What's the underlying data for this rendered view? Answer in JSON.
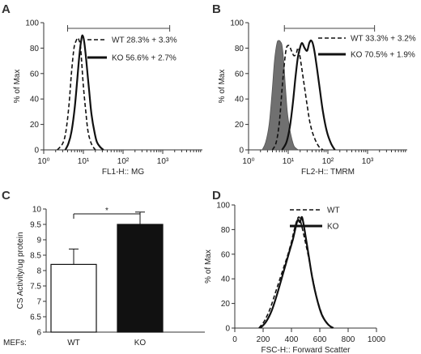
{
  "chart_data": [
    {
      "panel": "A",
      "type": "line",
      "xlabel": "FL1-H:: MG",
      "ylabel": "% of Max",
      "x_scale": "log",
      "xlim": [
        1,
        10000
      ],
      "ylim": [
        0,
        100
      ],
      "x_ticks": [
        "10⁰",
        "10¹",
        "10²",
        "10³"
      ],
      "y_ticks": [
        "0",
        "20",
        "40",
        "60",
        "80",
        "100"
      ],
      "gate_range": [
        4,
        1500
      ],
      "series": [
        {
          "name": "WT 28.3% + 3.3%",
          "style": "dashed",
          "x": [
            2.2,
            3.0,
            3.6,
            4.3,
            5.0,
            5.8,
            6.6,
            7.2,
            7.8,
            8.4,
            9.0,
            10.0,
            11.5,
            13.0,
            15.0,
            17.0,
            20.0
          ],
          "y": [
            0,
            5,
            14,
            34,
            60,
            80,
            86,
            88,
            86,
            82,
            70,
            50,
            30,
            15,
            7,
            3,
            0
          ]
        },
        {
          "name": "KO 56.6% + 2.7%",
          "style": "solid",
          "x": [
            3.5,
            4.2,
            5.0,
            6.0,
            7.0,
            8.0,
            8.8,
            9.5,
            10.5,
            12.0,
            14.0,
            16.0,
            19.0,
            22.0,
            27.0,
            32.0
          ],
          "y": [
            0,
            5,
            14,
            32,
            55,
            76,
            86,
            90,
            85,
            68,
            46,
            28,
            14,
            6,
            2,
            0
          ]
        }
      ]
    },
    {
      "panel": "B",
      "type": "line",
      "xlabel": "FL2-H:: TMRM",
      "ylabel": "% of Max",
      "x_scale": "log",
      "xlim": [
        1,
        10000
      ],
      "ylim": [
        0,
        100
      ],
      "x_ticks": [
        "10⁰",
        "10¹",
        "10²",
        "10³"
      ],
      "y_ticks": [
        "0",
        "20",
        "40",
        "60",
        "80",
        "100"
      ],
      "gate_range": [
        8,
        1500
      ],
      "series": [
        {
          "name": "",
          "style": "filled",
          "x": [
            2.2,
            2.7,
            3.3,
            3.9,
            4.5,
            5.2,
            5.8,
            6.4,
            7.0,
            7.7,
            8.5,
            9.5,
            11.0,
            12.5,
            14.0,
            16.0,
            18.0
          ],
          "y": [
            0,
            6,
            20,
            45,
            70,
            84,
            86,
            85,
            82,
            70,
            50,
            30,
            16,
            8,
            3,
            1,
            0
          ]
        },
        {
          "name": "WT 33.3% + 3.2%",
          "style": "dashed",
          "x": [
            4.0,
            5.0,
            6.0,
            7.0,
            8.0,
            9.0,
            10.5,
            12.0,
            14.0,
            16.0,
            18.0,
            21.0,
            25.0,
            30.0,
            36.0,
            45.0,
            58.0,
            75.0
          ],
          "y": [
            0,
            6,
            22,
            48,
            68,
            80,
            82,
            78,
            74,
            76,
            80,
            68,
            52,
            35,
            20,
            10,
            3,
            0
          ]
        },
        {
          "name": "KO 70.5% + 1.9%",
          "style": "solid",
          "x": [
            7.0,
            9.0,
            11.0,
            13.0,
            15.0,
            17.0,
            19.0,
            22.0,
            26.0,
            30.0,
            34.0,
            38.0,
            43.0,
            50.0,
            60.0,
            75.0,
            95.0,
            120.0,
            150.0
          ],
          "y": [
            0,
            6,
            18,
            36,
            55,
            70,
            78,
            84,
            80,
            78,
            84,
            86,
            82,
            70,
            52,
            30,
            14,
            5,
            0
          ]
        }
      ]
    },
    {
      "panel": "C",
      "type": "bar",
      "ylabel": "CS Activity/ug protein",
      "category_prefix": "MEFs:",
      "categories": [
        "WT",
        "KO"
      ],
      "values": [
        8.2,
        9.5
      ],
      "errors": [
        0.5,
        0.4
      ],
      "bar_colors": [
        "#ffffff",
        "#111111"
      ],
      "ylim": [
        6,
        10
      ],
      "y_ticks": [
        "6",
        "6.5",
        "7",
        "7.5",
        "8",
        "8.5",
        "9",
        "9.5",
        "10"
      ],
      "significance": "*"
    },
    {
      "panel": "D",
      "type": "line",
      "xlabel": "FSC-H:: Forward Scatter",
      "ylabel": "% of Max",
      "x_scale": "linear",
      "xlim": [
        0,
        1000
      ],
      "ylim": [
        0,
        100
      ],
      "x_ticks": [
        "0",
        "200",
        "400",
        "600",
        "800",
        "1000"
      ],
      "y_ticks": [
        "0",
        "20",
        "40",
        "60",
        "80",
        "100"
      ],
      "series": [
        {
          "name": "WT",
          "style": "dashed",
          "x": [
            170,
            210,
            250,
            290,
            330,
            370,
            400,
            420,
            440,
            455,
            470,
            490,
            520,
            550,
            580,
            620,
            660,
            700
          ],
          "y": [
            0,
            6,
            16,
            30,
            44,
            58,
            70,
            80,
            88,
            90,
            84,
            74,
            58,
            40,
            24,
            10,
            3,
            0
          ]
        },
        {
          "name": "KO",
          "style": "solid",
          "x": [
            180,
            220,
            260,
            300,
            340,
            380,
            410,
            430,
            445,
            460,
            475,
            495,
            520,
            545,
            575,
            610,
            650,
            690
          ],
          "y": [
            0,
            5,
            14,
            28,
            44,
            60,
            72,
            82,
            88,
            86,
            90,
            78,
            60,
            42,
            26,
            12,
            4,
            0
          ]
        }
      ]
    }
  ]
}
